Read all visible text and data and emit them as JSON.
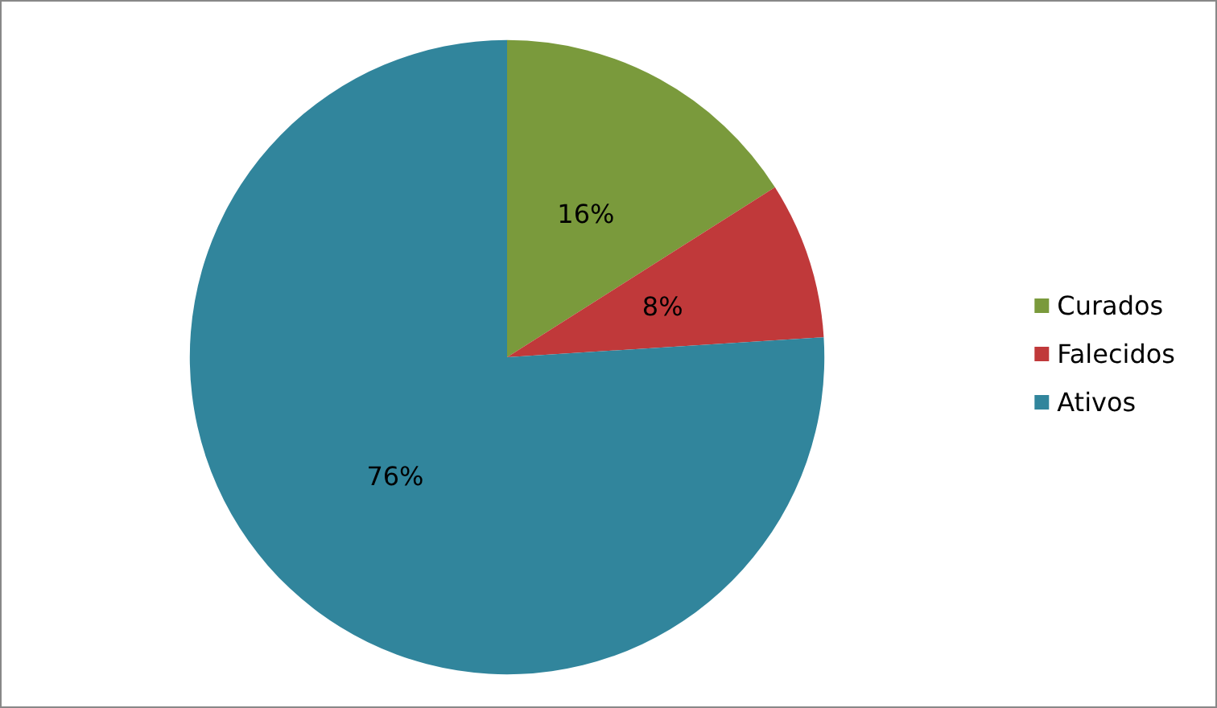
{
  "chart_data": {
    "type": "pie",
    "categories": [
      "Curados",
      "Falecidos",
      "Ativos"
    ],
    "values": [
      16,
      8,
      76
    ],
    "colors": [
      "#7a9a3c",
      "#c0393a",
      "#31859c"
    ],
    "value_labels": [
      "16%",
      "8%",
      "76%"
    ],
    "legend": "right"
  }
}
